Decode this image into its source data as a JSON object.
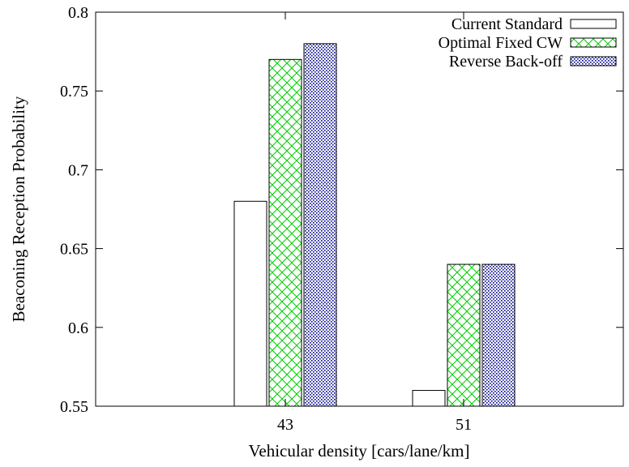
{
  "chart_data": {
    "type": "bar",
    "xlabel": "Vehicular density [cars/lane/km]",
    "ylabel": "Beaconing Reception Probability",
    "ylim": [
      0.55,
      0.8
    ],
    "yticks": [
      "0.55",
      "0.6",
      "0.65",
      "0.7",
      "0.75",
      "0.8"
    ],
    "categories": [
      "43",
      "51"
    ],
    "series": [
      {
        "name": "Current Standard",
        "values": [
          0.68,
          0.56
        ],
        "pattern": "none",
        "color": "#000000"
      },
      {
        "name": "Optimal Fixed CW",
        "values": [
          0.77,
          0.64
        ],
        "pattern": "crosshatch",
        "color": "#00cc00"
      },
      {
        "name": "Reverse Back-off",
        "values": [
          0.78,
          0.64
        ],
        "pattern": "dots",
        "color": "#00008b"
      }
    ],
    "legend_position": "top-right",
    "grid": false
  }
}
